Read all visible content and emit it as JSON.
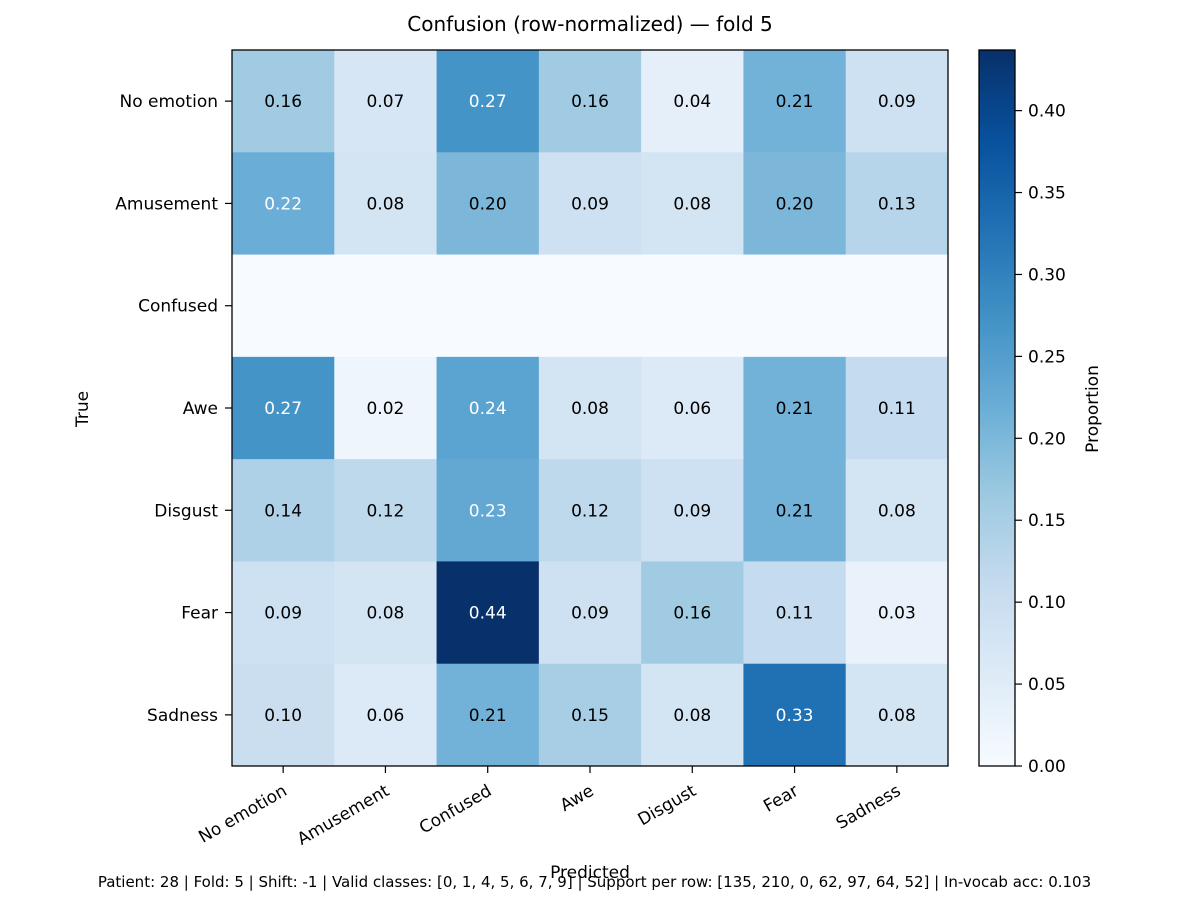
{
  "chart_data": {
    "type": "heatmap",
    "title": "Confusion (row-normalized) — fold 5",
    "xlabel": "Predicted",
    "ylabel": "True",
    "x_categories": [
      "No emotion",
      "Amusement",
      "Confused",
      "Awe",
      "Disgust",
      "Fear",
      "Sadness"
    ],
    "y_categories": [
      "No emotion",
      "Amusement",
      "Confused",
      "Awe",
      "Disgust",
      "Fear",
      "Sadness"
    ],
    "values": [
      [
        0.16,
        0.07,
        0.27,
        0.16,
        0.04,
        0.21,
        0.09
      ],
      [
        0.22,
        0.08,
        0.2,
        0.09,
        0.08,
        0.2,
        0.13
      ],
      [
        null,
        null,
        null,
        null,
        null,
        null,
        null
      ],
      [
        0.27,
        0.02,
        0.24,
        0.08,
        0.06,
        0.21,
        0.11
      ],
      [
        0.14,
        0.12,
        0.23,
        0.12,
        0.09,
        0.21,
        0.08
      ],
      [
        0.09,
        0.08,
        0.44,
        0.09,
        0.16,
        0.11,
        0.03
      ],
      [
        0.1,
        0.06,
        0.21,
        0.15,
        0.08,
        0.33,
        0.08
      ]
    ],
    "colorbar": {
      "label": "Proportion",
      "range": [
        0,
        0.437
      ],
      "ticks": [
        "0.00",
        "0.05",
        "0.10",
        "0.15",
        "0.20",
        "0.25",
        "0.30",
        "0.35",
        "0.40"
      ],
      "colormap": "Blues"
    }
  },
  "footer": "Patient: 28 | Fold: 5 | Shift: -1 | Valid classes: [0, 1, 4, 5, 6, 7, 9] | Support per row: [135, 210, 0, 62, 97, 64, 52] | In-vocab acc: 0.103"
}
